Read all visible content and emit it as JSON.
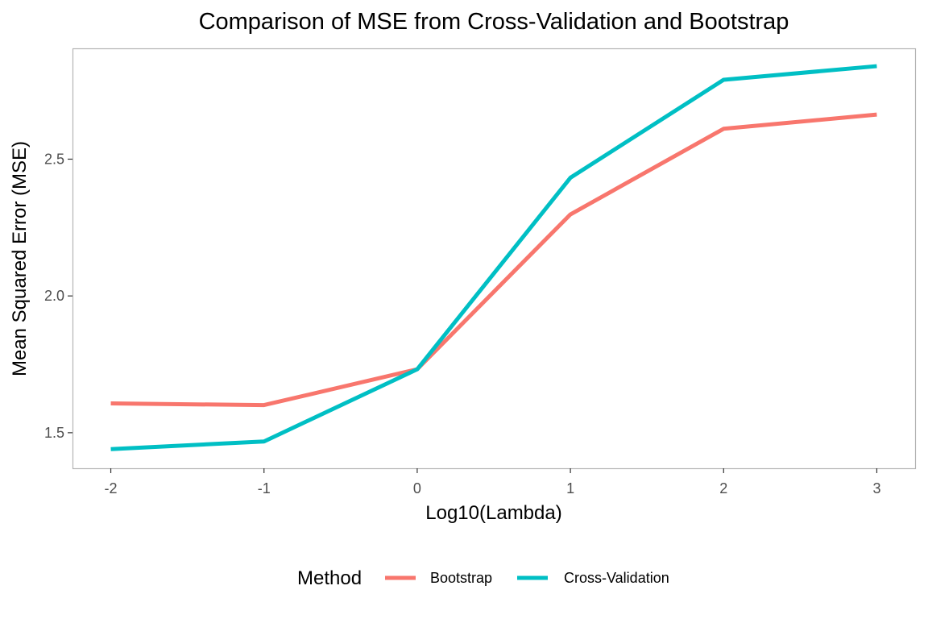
{
  "chart_data": {
    "type": "line",
    "title": "Comparison of MSE from Cross-Validation and Bootstrap",
    "xlabel": "Log10(Lambda)",
    "ylabel": "Mean Squared Error (MSE)",
    "x": [
      -2,
      -1,
      0,
      1,
      2,
      3
    ],
    "x_ticks": [
      "-2",
      "-1",
      "0",
      "1",
      "2",
      "3"
    ],
    "y_ticks": [
      "1.5",
      "2.0",
      "2.5"
    ],
    "y_tick_values": [
      1.5,
      2.0,
      2.5
    ],
    "xlim": [
      -2.25,
      3.25
    ],
    "ylim": [
      1.37,
      2.905
    ],
    "grid": false,
    "legend": {
      "title": "Method",
      "position": "bottom"
    },
    "series": [
      {
        "name": "Bootstrap",
        "color": "#F8766D",
        "values": [
          1.607,
          1.601,
          1.732,
          2.298,
          2.611,
          2.663
        ]
      },
      {
        "name": "Cross-Validation",
        "color": "#00BFC4",
        "values": [
          1.44,
          1.468,
          1.732,
          2.432,
          2.79,
          2.84
        ]
      }
    ]
  }
}
